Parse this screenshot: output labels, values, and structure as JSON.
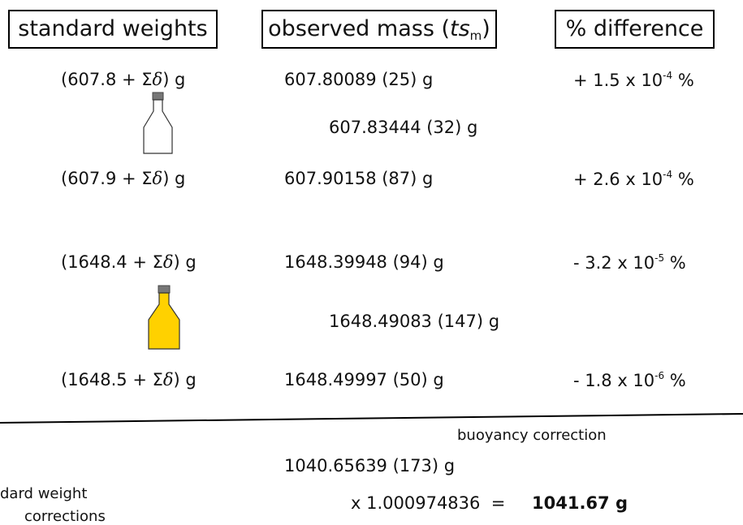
{
  "header": {
    "standard": "standard weights",
    "observed": {
      "before": "observed mass (",
      "italic": "ts",
      "sub": "m",
      "after": ")"
    },
    "difference": "% difference"
  },
  "rows": [
    {
      "weight": {
        "open": "(607.8 + Σ",
        "delta": "δ",
        "close": ") g"
      },
      "observed": "607.80089 (25) g",
      "difference": {
        "base": "+ 1.5 x 10",
        "exp": "-4",
        "unit": " %"
      }
    },
    {
      "weight": {
        "open": "(607.9 + Σ",
        "delta": "δ",
        "close": ") g"
      },
      "observed": "607.90158 (87) g",
      "difference": {
        "base": "+ 2.6 x 10",
        "exp": "-4",
        "unit": " %"
      }
    },
    {
      "weight": {
        "open": "(1648.4 + Σ",
        "delta": "δ",
        "close": ") g"
      },
      "observed": "1648.39948 (94) g",
      "difference": {
        "base": "- 3.2 x 10",
        "exp": "-5",
        "unit": " %"
      }
    },
    {
      "weight": {
        "open": "(1648.5 + Σ",
        "delta": "δ",
        "close": ") g"
      },
      "observed": "1648.49997 (50) g",
      "difference": {
        "base": "- 1.8 x 10",
        "exp": "-6",
        "unit": " %"
      }
    }
  ],
  "bottles": [
    "607.83444 (32) g",
    "1648.49083 (147) g"
  ],
  "footer": {
    "buoyancy": "buoyancy correction",
    "mass": "1040.65639 (173) g",
    "side_line1": "dard weight",
    "side_line2": "corrections",
    "factor": "x 1.000974836  =",
    "result": "1041.67 g"
  }
}
